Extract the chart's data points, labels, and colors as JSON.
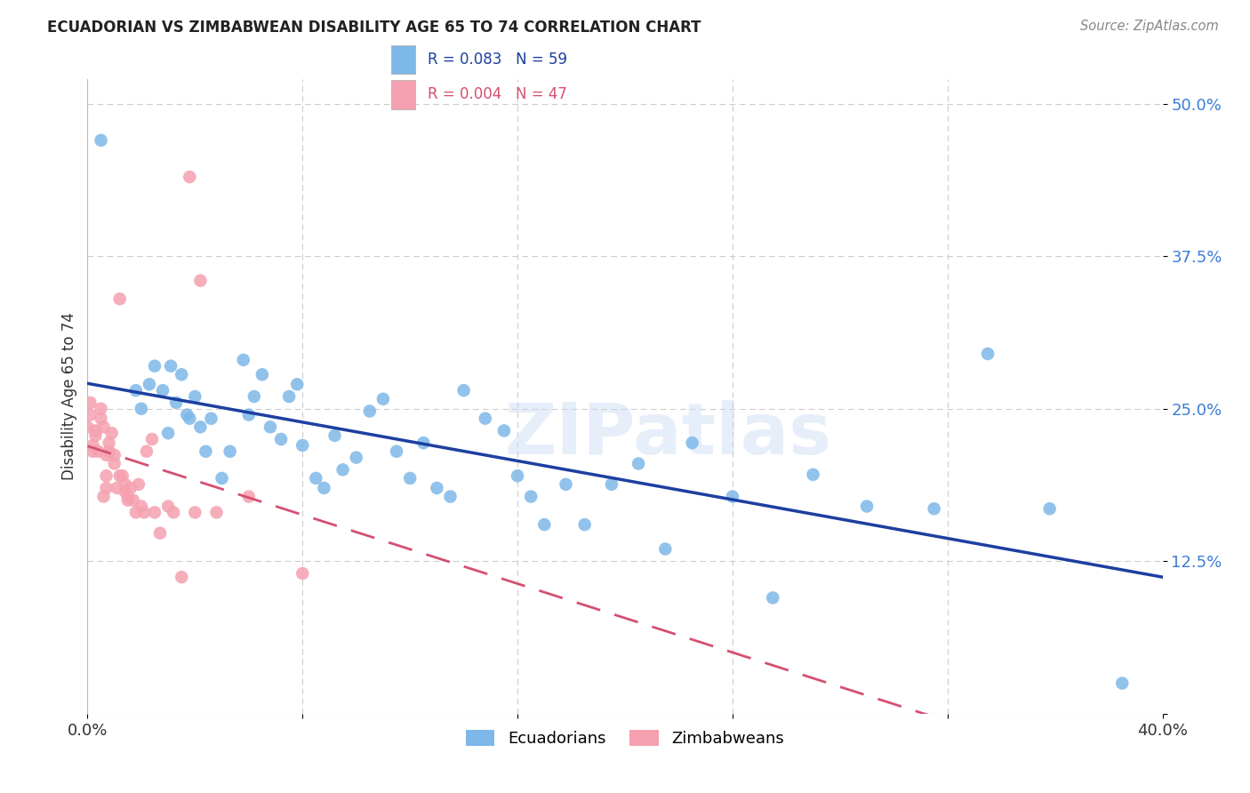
{
  "title": "ECUADORIAN VS ZIMBABWEAN DISABILITY AGE 65 TO 74 CORRELATION CHART",
  "source": "Source: ZipAtlas.com",
  "ylabel": "Disability Age 65 to 74",
  "xlim": [
    0.0,
    0.4
  ],
  "ylim": [
    0.0,
    0.52
  ],
  "yticks": [
    0.0,
    0.125,
    0.25,
    0.375,
    0.5
  ],
  "ytick_labels": [
    "",
    "12.5%",
    "25.0%",
    "37.5%",
    "50.0%"
  ],
  "xticks": [
    0.0,
    0.08,
    0.16,
    0.24,
    0.32,
    0.4
  ],
  "xtick_labels": [
    "0.0%",
    "",
    "",
    "",
    "",
    "40.0%"
  ],
  "background_color": "#ffffff",
  "grid_color": "#cccccc",
  "ecuadorians_color": "#7eb8e8",
  "zimbabweans_color": "#f5a0b0",
  "ecuador_R": 0.083,
  "ecuador_N": 59,
  "zimbabwe_R": 0.004,
  "zimbabwe_N": 47,
  "blue_line_color": "#1c3fa0",
  "pink_line_color": "#d45070",
  "watermark": "ZIPatlas",
  "ecuadorians_x": [
    0.005,
    0.018,
    0.02,
    0.023,
    0.025,
    0.028,
    0.03,
    0.031,
    0.033,
    0.035,
    0.037,
    0.038,
    0.04,
    0.042,
    0.044,
    0.046,
    0.05,
    0.053,
    0.058,
    0.06,
    0.062,
    0.065,
    0.068,
    0.072,
    0.075,
    0.078,
    0.08,
    0.085,
    0.088,
    0.092,
    0.095,
    0.1,
    0.105,
    0.11,
    0.115,
    0.12,
    0.125,
    0.13,
    0.135,
    0.14,
    0.148,
    0.155,
    0.16,
    0.165,
    0.17,
    0.178,
    0.185,
    0.195,
    0.205,
    0.215,
    0.225,
    0.24,
    0.255,
    0.27,
    0.29,
    0.315,
    0.335,
    0.358,
    0.385
  ],
  "ecuadorians_y": [
    0.47,
    0.265,
    0.25,
    0.27,
    0.285,
    0.265,
    0.23,
    0.285,
    0.255,
    0.278,
    0.245,
    0.242,
    0.26,
    0.235,
    0.215,
    0.242,
    0.193,
    0.215,
    0.29,
    0.245,
    0.26,
    0.278,
    0.235,
    0.225,
    0.26,
    0.27,
    0.22,
    0.193,
    0.185,
    0.228,
    0.2,
    0.21,
    0.248,
    0.258,
    0.215,
    0.193,
    0.222,
    0.185,
    0.178,
    0.265,
    0.242,
    0.232,
    0.195,
    0.178,
    0.155,
    0.188,
    0.155,
    0.188,
    0.205,
    0.135,
    0.222,
    0.178,
    0.095,
    0.196,
    0.17,
    0.168,
    0.295,
    0.168,
    0.025
  ],
  "zimbabweans_x": [
    0.0,
    0.001,
    0.001,
    0.002,
    0.002,
    0.003,
    0.003,
    0.004,
    0.005,
    0.005,
    0.006,
    0.006,
    0.007,
    0.007,
    0.007,
    0.008,
    0.008,
    0.009,
    0.01,
    0.01,
    0.011,
    0.012,
    0.012,
    0.013,
    0.014,
    0.014,
    0.015,
    0.015,
    0.016,
    0.017,
    0.018,
    0.019,
    0.02,
    0.021,
    0.022,
    0.024,
    0.025,
    0.027,
    0.03,
    0.032,
    0.035,
    0.038,
    0.04,
    0.042,
    0.048,
    0.06,
    0.08
  ],
  "zimbabweans_y": [
    0.235,
    0.245,
    0.255,
    0.22,
    0.215,
    0.228,
    0.232,
    0.215,
    0.242,
    0.25,
    0.235,
    0.178,
    0.185,
    0.212,
    0.195,
    0.215,
    0.222,
    0.23,
    0.212,
    0.205,
    0.185,
    0.195,
    0.34,
    0.195,
    0.182,
    0.188,
    0.178,
    0.175,
    0.185,
    0.175,
    0.165,
    0.188,
    0.17,
    0.165,
    0.215,
    0.225,
    0.165,
    0.148,
    0.17,
    0.165,
    0.112,
    0.44,
    0.165,
    0.355,
    0.165,
    0.178,
    0.115
  ]
}
